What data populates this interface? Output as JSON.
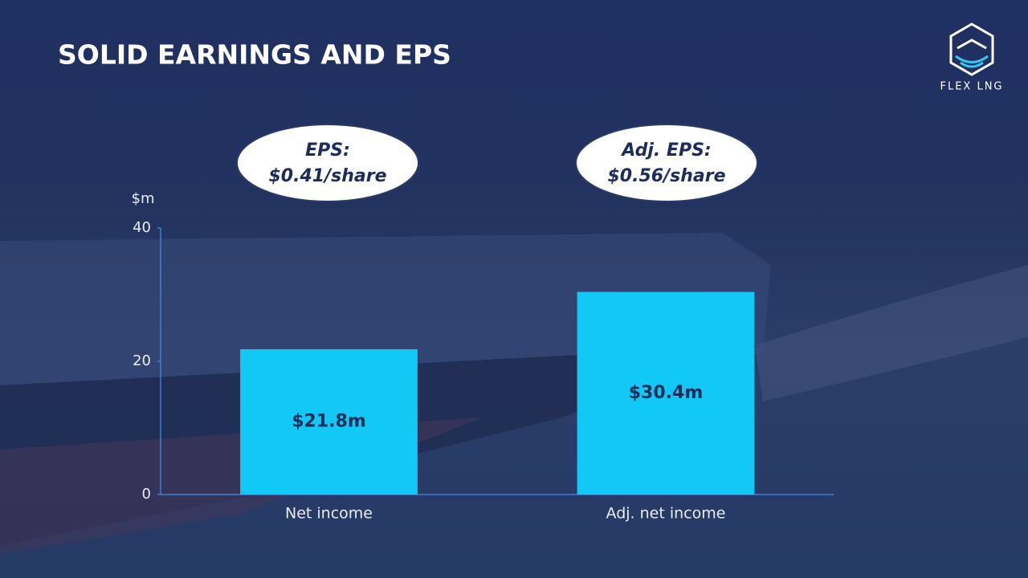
{
  "logo": "FLEX LNG",
  "chart_data": {
    "type": "bar",
    "title": "SOLID EARNINGS AND EPS",
    "y_label": "$m",
    "categories": [
      "Net income",
      "Adj. net income"
    ],
    "values": [
      21.8,
      30.4
    ],
    "value_labels": [
      "$21.8m",
      "$30.4m"
    ],
    "color": "#12c8f5",
    "ylim": [
      0,
      40
    ],
    "yticks": [
      0,
      20,
      40
    ],
    "grid": false,
    "annotations": [
      {
        "lines": [
          "EPS:",
          "$0.41/share"
        ]
      },
      {
        "lines": [
          "Adj. EPS:",
          "$0.56/share"
        ]
      }
    ]
  }
}
